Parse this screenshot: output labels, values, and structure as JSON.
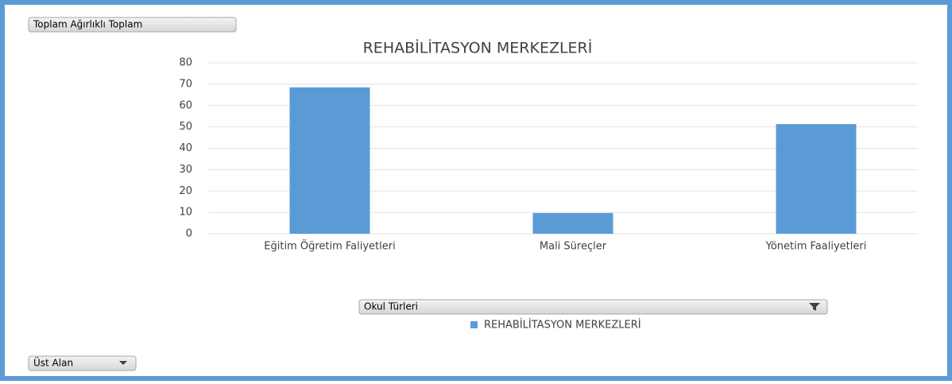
{
  "chart_data": {
    "type": "bar",
    "title": "REHABİLİTASYON MERKEZLERİ",
    "categories": [
      "Eğitim Öğretim Faliyetleri",
      "Mali Süreçler",
      "Yönetim Faaliyetleri"
    ],
    "series": [
      {
        "name": "REHABİLİTASYON MERKEZLERİ",
        "color": "#5b9bd5",
        "values": [
          68.5,
          9.7,
          51.3
        ]
      }
    ],
    "ylim": [
      0,
      80
    ],
    "yticks": [
      0,
      10,
      20,
      30,
      40,
      50,
      60,
      70,
      80
    ],
    "grid": true,
    "legend": "bottom"
  },
  "buttons": {
    "values_field": "Toplam Ağırlıklı Toplam",
    "legend_field": "Okul Türleri",
    "filter_field": "Üst Alan"
  }
}
